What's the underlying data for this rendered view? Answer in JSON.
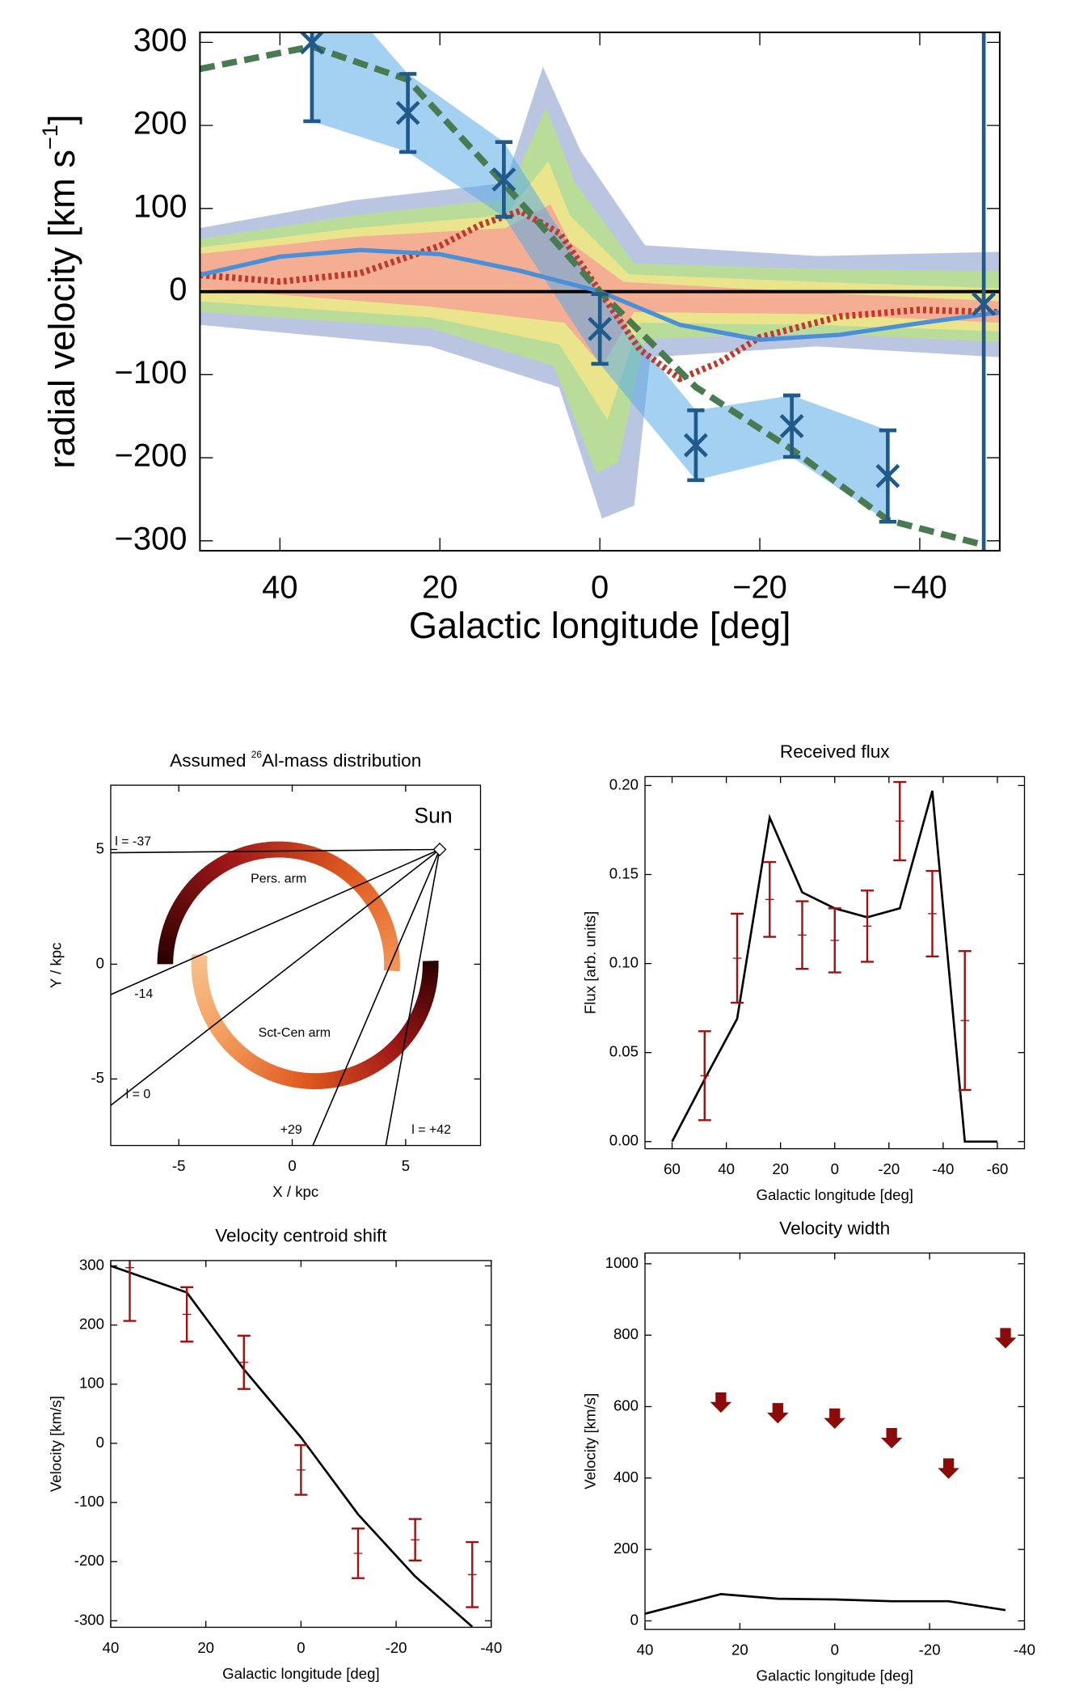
{
  "charts": [
    {
      "type": "line",
      "xlabel": "Galactic longitude [deg]",
      "ylabel": "radial velocity [km s",
      "ylabel_sup": "−1",
      "ylabel_end": "]",
      "xlim": [
        50,
        -50
      ],
      "ylim": [
        -312,
        312
      ],
      "xticks": [
        40,
        20,
        0,
        {
          "value": -20,
          "label": "−20"
        },
        {
          "value": -40,
          "label": "−40"
        }
      ],
      "yticks": [
        {
          "value": -300,
          "label": "−300"
        },
        {
          "value": -200,
          "label": "−200"
        },
        {
          "value": -100,
          "label": "−100"
        },
        0,
        100,
        200,
        300
      ],
      "series": [
        {
          "color": "#c0392b",
          "style": "dotted",
          "x": [
            50,
            40,
            30,
            20,
            15,
            10,
            5,
            0,
            -5,
            -10,
            -15,
            -20,
            -30,
            -40,
            -50
          ],
          "values": [
            20,
            12,
            22,
            55,
            80,
            97,
            70,
            0,
            -70,
            -105,
            -85,
            -55,
            -30,
            -22,
            -25
          ]
        },
        {
          "color": "#4a90d9",
          "style": "solid",
          "x": [
            50,
            40,
            30,
            20,
            10,
            0,
            -10,
            -20,
            -30,
            -40,
            -50
          ],
          "values": [
            20,
            42,
            50,
            45,
            25,
            0,
            -40,
            -58,
            -52,
            -38,
            -25
          ]
        },
        {
          "color": "#4a7a50",
          "style": "dashed",
          "x": [
            50,
            36,
            24,
            12,
            0,
            -12,
            -24,
            -36,
            -48
          ],
          "values": [
            268,
            295,
            255,
            130,
            0,
            -115,
            -190,
            -275,
            -305
          ]
        }
      ],
      "points": {
        "color": "#1f5a8a",
        "marker": "x",
        "band": "#5aaae8",
        "x": [
          36,
          24,
          12,
          0,
          -12,
          -24,
          -36,
          -48
        ],
        "values": [
          300,
          215,
          135,
          -45,
          -185,
          -162,
          -222,
          -15
        ],
        "errors": [
          95,
          47,
          45,
          42,
          42,
          37,
          55,
          330
        ]
      }
    },
    {
      "type": "map",
      "title_pre": "Assumed ",
      "title_sup": "26",
      "title": "Al-mass distribution",
      "xlabel": "X / kpc",
      "ylabel": "Y / kpc",
      "xlim": [
        -8,
        8.3
      ],
      "ylim": [
        -7.9,
        7.8
      ],
      "xticks": [
        -5,
        0,
        5
      ],
      "yticks": [
        -5,
        0,
        5
      ],
      "sun": {
        "label": "Sun",
        "x": 6.5,
        "y": 5
      },
      "arms": [
        "Pers. arm",
        "Sct-Cen arm"
      ],
      "sightlines": [
        {
          "label": "l = -37",
          "l": -37
        },
        {
          "label": "-14",
          "l": -14
        },
        {
          "label": "l = 0",
          "l": 0
        },
        {
          "label": "+29",
          "l": 29
        },
        {
          "label": "l = +42",
          "l": 42
        }
      ]
    },
    {
      "type": "line",
      "title": "Received flux",
      "xlabel": "Galactic longitude [deg]",
      "ylabel": "Flux [arb. units]",
      "xlim": [
        70,
        -70
      ],
      "ylim": [
        -0.004,
        0.205
      ],
      "xticks": [
        60,
        40,
        20,
        0,
        -20,
        -40,
        -60
      ],
      "yticks": [
        {
          "value": 0,
          "label": "0.00"
        },
        {
          "value": 0.05,
          "label": "0.05"
        },
        {
          "value": 0.1,
          "label": "0.10"
        },
        {
          "value": 0.15,
          "label": "0.15"
        },
        {
          "value": 0.2,
          "label": "0.20"
        }
      ],
      "series": [
        {
          "color": "#000000",
          "style": "solid",
          "x": [
            60,
            48,
            36,
            24,
            12,
            0,
            -12,
            -24,
            -36,
            -48,
            -60
          ],
          "values": [
            0,
            0.035,
            0.069,
            0.182,
            0.14,
            0.131,
            0.126,
            0.131,
            0.197,
            0,
            0
          ]
        }
      ],
      "points": {
        "color": "#a01010",
        "marker": "plus",
        "x": [
          48,
          36,
          24,
          12,
          0,
          -12,
          -24,
          -36,
          -48
        ],
        "values": [
          0.037,
          0.103,
          0.136,
          0.116,
          0.113,
          0.121,
          0.18,
          0.128,
          0.068
        ],
        "errors": [
          0.025,
          0.025,
          0.021,
          0.019,
          0.018,
          0.02,
          0.022,
          0.024,
          0.039
        ]
      }
    },
    {
      "type": "line",
      "title": "Velocity centroid shift",
      "xlabel": "Galactic longitude [deg]",
      "ylabel": "Velocity [km/s]",
      "xlim": [
        40,
        -40
      ],
      "ylim": [
        -311,
        309
      ],
      "xticks": [
        40,
        20,
        0,
        -20,
        -40
      ],
      "yticks": [
        -300,
        -200,
        -100,
        0,
        100,
        200,
        300
      ],
      "series": [
        {
          "color": "#000000",
          "style": "solid",
          "x": [
            40,
            24,
            12,
            0,
            -12,
            -24,
            -36
          ],
          "values": [
            300,
            255,
            125,
            10,
            -120,
            -225,
            -310
          ]
        }
      ],
      "points": {
        "color": "#a01010",
        "marker": "plus",
        "x": [
          36,
          24,
          12,
          0,
          -12,
          -24,
          -36
        ],
        "values": [
          297,
          218,
          137,
          -45,
          -186,
          -163,
          -222
        ],
        "errors": [
          90,
          46,
          45,
          42,
          42,
          35,
          55
        ]
      }
    },
    {
      "type": "line",
      "title": "Velocity width",
      "xlabel": "Galactic longitude [deg]",
      "ylabel": "Velocity [km/s]",
      "xlim": [
        40,
        -40
      ],
      "ylim": [
        -24,
        1030
      ],
      "xticks": [
        40,
        20,
        0,
        -20,
        -40
      ],
      "yticks": [
        0,
        200,
        400,
        600,
        800,
        1000
      ],
      "series": [
        {
          "color": "#000000",
          "style": "solid",
          "x": [
            40,
            24,
            12,
            0,
            -12,
            -24,
            -36
          ],
          "values": [
            20,
            75,
            62,
            60,
            55,
            55,
            30
          ]
        }
      ],
      "upper_limits": {
        "color": "#8b0a0a",
        "x": [
          24,
          12,
          0,
          -12,
          -24,
          -36
        ],
        "values": [
          640,
          610,
          595,
          540,
          455,
          820
        ]
      }
    }
  ]
}
